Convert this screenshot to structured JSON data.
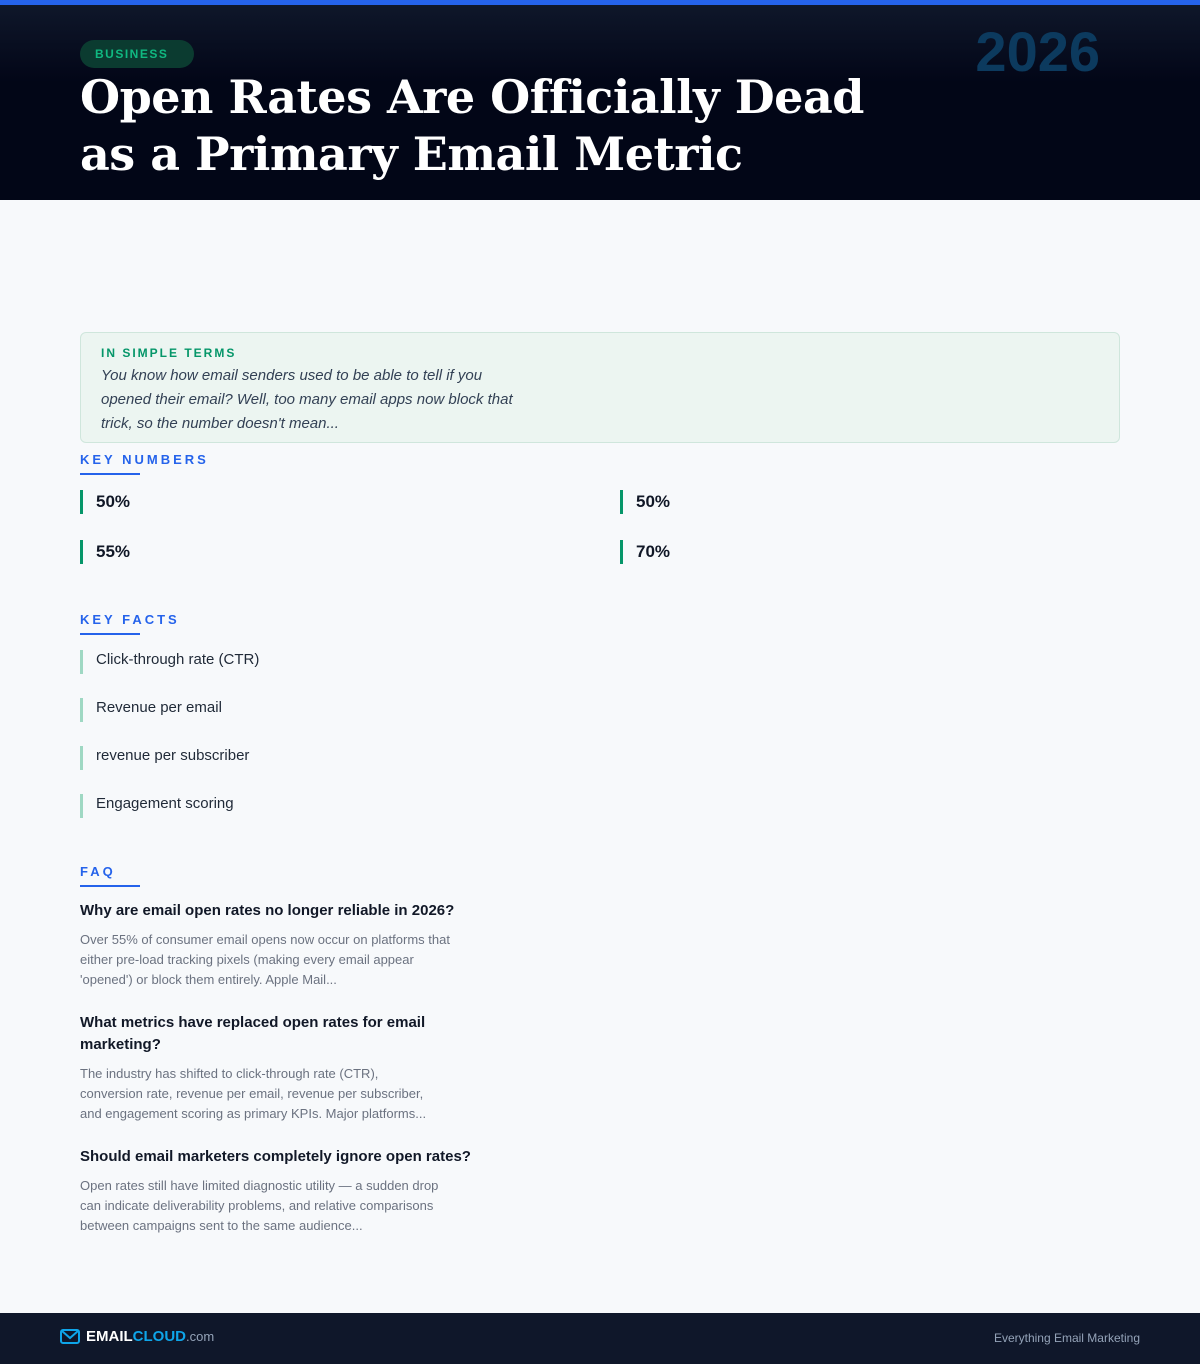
{
  "header": {
    "category": "BUSINESS",
    "year": "2026",
    "title_line1": "Open Rates Are Officially Dead",
    "title_line2": "as a Primary Email Metric"
  },
  "simple": {
    "label": "IN SIMPLE TERMS",
    "text": "You know how email senders used to be able to tell if you opened their email? Well, too many email apps now block that trick, so the number doesn't mean..."
  },
  "key_numbers": {
    "heading": "KEY NUMBERS",
    "items": [
      "50%",
      "50%",
      "55%",
      "70%"
    ]
  },
  "key_facts": {
    "heading": "KEY FACTS",
    "items": [
      "Click-through rate (CTR)",
      "Revenue per email",
      "revenue per subscriber",
      "Engagement scoring"
    ]
  },
  "faq": {
    "heading": "FAQ",
    "items": [
      {
        "q": "Why are email open rates no longer reliable in 2026?",
        "a": "Over 55% of consumer email opens now occur on platforms that either pre-load tracking pixels (making every email appear 'opened') or block them entirely. Apple Mail..."
      },
      {
        "q": "What metrics have replaced open rates for email marketing?",
        "a": "The industry has shifted to click-through rate (CTR), conversion rate, revenue per email, revenue per subscriber, and engagement scoring as primary KPIs. Major platforms..."
      },
      {
        "q": "Should email marketers completely ignore open rates?",
        "a": "Open rates still have limited diagnostic utility — a sudden drop can indicate deliverability problems, and relative comparisons between campaigns sent to the same audience..."
      }
    ]
  },
  "footer": {
    "brand_a": "EMAIL",
    "brand_b": "CLOUD",
    "brand_c": ".com",
    "tagline": "Everything Email Marketing",
    "icon": "mail-icon"
  }
}
